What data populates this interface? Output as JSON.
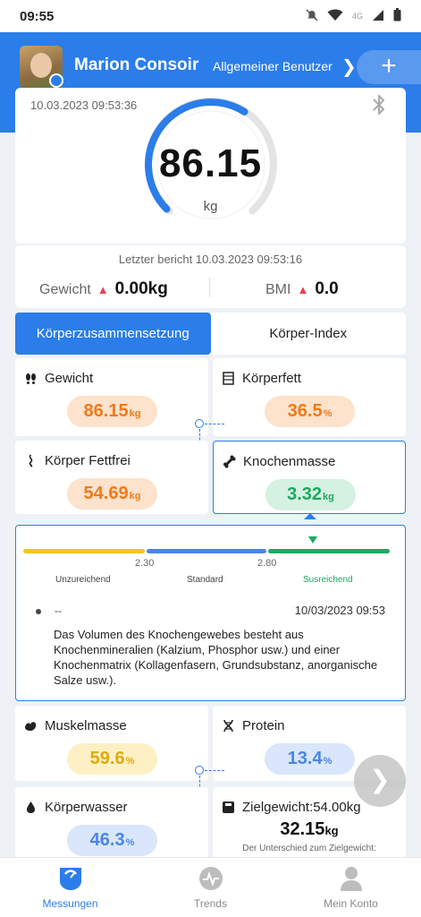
{
  "status": {
    "time": "09:55",
    "network": "4G"
  },
  "user": {
    "name": "Marion Consoir",
    "role": "Allgemeiner Benutzer"
  },
  "measurement": {
    "date": "10.03.2023 09:53:36",
    "value": "86.15",
    "unit": "kg",
    "gauge_fraction": 0.62
  },
  "report": {
    "last": "Letzter bericht 10.03.2023 09:53:16",
    "weight_label": "Gewicht",
    "weight_change": "0.00kg",
    "bmi_label": "BMI",
    "bmi_change": "0.0"
  },
  "tabs": [
    {
      "label": "Körperzusammensetzung",
      "active": true
    },
    {
      "label": "Körper-Index",
      "active": false
    }
  ],
  "metrics": {
    "weight": {
      "label": "Gewicht",
      "value": "86.15",
      "unit": "kg"
    },
    "fat": {
      "label": "Körperfett",
      "value": "36.5",
      "unit": "%"
    },
    "fatfree": {
      "label": "Körper Fettfrei",
      "value": "54.69",
      "unit": "kg"
    },
    "bone": {
      "label": "Knochenmasse",
      "value": "3.32",
      "unit": "kg"
    },
    "muscle": {
      "label": "Muskelmasse",
      "value": "59.6",
      "unit": "%"
    },
    "protein": {
      "label": "Protein",
      "value": "13.4",
      "unit": "%"
    },
    "water": {
      "label": "Körperwasser",
      "value": "46.3",
      "unit": "%"
    },
    "target": {
      "label": "Zielgewicht:54.00kg",
      "value": "32.15",
      "unit": "kg",
      "diff_label": "Der Unterschied zum Zielgewicht:"
    }
  },
  "bone_detail": {
    "thresholds": [
      "2.30",
      "2.80"
    ],
    "levels": [
      "Unzureichend",
      "Standard",
      "Susreichend"
    ],
    "colors": [
      "#f5c518",
      "#4a86e6",
      "#1ea862"
    ],
    "dash": "--",
    "date": "10/03/2023 09:53",
    "description": "Das Volumen des Knochengewebes besteht aus Knochenmineralien (Kalzium, Phosphor usw.) und einer Knochenmatrix (Kollagenfasern, Grundsubstanz, anorganische Salze usw.)."
  },
  "nav": [
    {
      "label": "Messungen",
      "icon": "scale-icon",
      "active": true
    },
    {
      "label": "Trends",
      "icon": "trends-icon",
      "active": false
    },
    {
      "label": "Mein Konto",
      "icon": "account-icon",
      "active": false
    }
  ],
  "colors": {
    "primary": "#2b7de9",
    "up_arrow": "#e9424d"
  }
}
